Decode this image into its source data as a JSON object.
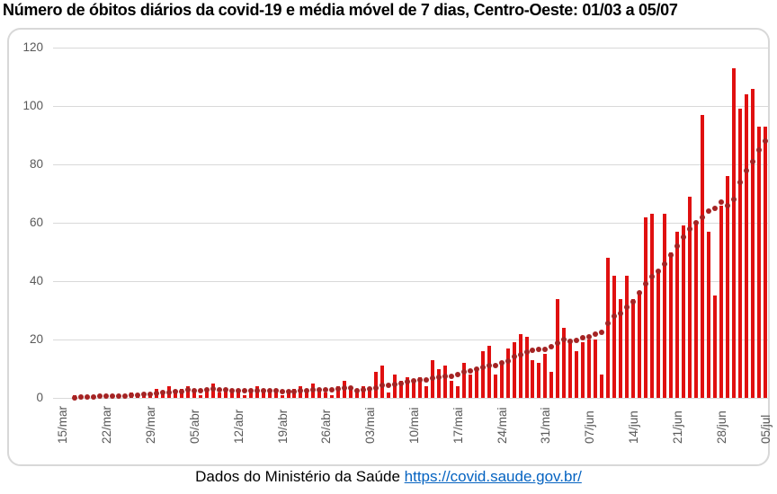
{
  "title": "Número de óbitos diários da covid-19 e média móvel de 7 dias, Centro-Oeste: 01/03 a 05/07",
  "footer": {
    "text": "Dados do Ministério da Saúde ",
    "link_label": "https://covid.saude.gov.br/"
  },
  "colors": {
    "bar": "#e01010",
    "moving_average_dot": "#a52323",
    "gridline": "#d9d9d9",
    "axis_text": "#595959",
    "link": "#0563c1",
    "frame_border": "#d8d8d8"
  },
  "chart_data": {
    "type": "bar",
    "title": "Número de óbitos diários da covid-19 e média móvel de 7 dias, Centro-Oeste: 01/03 a 05/07",
    "xlabel": "",
    "ylabel": "",
    "ylim": [
      0,
      120
    ],
    "y_ticks": [
      0,
      20,
      40,
      60,
      80,
      100,
      120
    ],
    "grid": "horizontal",
    "legend": "none",
    "x_tick_labels": [
      "15/mar",
      "22/mar",
      "29/mar",
      "05/abr",
      "12/abr",
      "19/abr",
      "26/abr",
      "03/mai",
      "10/mai",
      "17/mai",
      "24/mai",
      "31/mai",
      "07/jun",
      "14/jun",
      "21/jun",
      "28/jun",
      "05/jul"
    ],
    "series": [
      {
        "name": "Número de óbitos diários",
        "style": "bar",
        "color": "#e01010"
      },
      {
        "name": "Média móvel de 7 dias",
        "style": "dots",
        "color": "#a52323"
      }
    ],
    "days": [
      {
        "d": "14/mar",
        "v": 0,
        "m": null
      },
      {
        "d": "15/mar",
        "v": 0,
        "m": null
      },
      {
        "d": "16/mar",
        "v": 0,
        "m": null
      },
      {
        "d": "17/mar",
        "v": 1,
        "m": 0.1
      },
      {
        "d": "18/mar",
        "v": 1,
        "m": 0.3
      },
      {
        "d": "19/mar",
        "v": 0,
        "m": 0.4
      },
      {
        "d": "20/mar",
        "v": 1,
        "m": 0.4
      },
      {
        "d": "21/mar",
        "v": 1,
        "m": 0.6
      },
      {
        "d": "22/mar",
        "v": 0,
        "m": 0.6
      },
      {
        "d": "23/mar",
        "v": 1,
        "m": 0.6
      },
      {
        "d": "24/mar",
        "v": 1,
        "m": 0.7
      },
      {
        "d": "25/mar",
        "v": 1,
        "m": 0.7
      },
      {
        "d": "26/mar",
        "v": 2,
        "m": 0.9
      },
      {
        "d": "27/mar",
        "v": 1,
        "m": 1.0
      },
      {
        "d": "28/mar",
        "v": 2,
        "m": 1.1
      },
      {
        "d": "29/mar",
        "v": 1,
        "m": 1.3
      },
      {
        "d": "30/mar",
        "v": 3,
        "m": 1.6
      },
      {
        "d": "31/mar",
        "v": 2,
        "m": 1.7
      },
      {
        "d": "01/abr",
        "v": 4,
        "m": 2.0
      },
      {
        "d": "02/abr",
        "v": 2,
        "m": 2.1
      },
      {
        "d": "03/abr",
        "v": 3,
        "m": 2.3
      },
      {
        "d": "04/abr",
        "v": 4,
        "m": 2.7
      },
      {
        "d": "05/abr",
        "v": 2,
        "m": 2.6
      },
      {
        "d": "06/abr",
        "v": 1,
        "m": 2.4
      },
      {
        "d": "07/abr",
        "v": 3,
        "m": 2.7
      },
      {
        "d": "08/abr",
        "v": 5,
        "m": 3.0
      },
      {
        "d": "09/abr",
        "v": 2,
        "m": 2.9
      },
      {
        "d": "10/abr",
        "v": 3,
        "m": 2.9
      },
      {
        "d": "11/abr",
        "v": 2,
        "m": 2.6
      },
      {
        "d": "12/abr",
        "v": 2,
        "m": 2.6
      },
      {
        "d": "13/abr",
        "v": 1,
        "m": 2.6
      },
      {
        "d": "14/abr",
        "v": 3,
        "m": 2.6
      },
      {
        "d": "15/abr",
        "v": 4,
        "m": 2.4
      },
      {
        "d": "16/abr",
        "v": 2,
        "m": 2.4
      },
      {
        "d": "17/abr",
        "v": 3,
        "m": 2.4
      },
      {
        "d": "18/abr",
        "v": 2,
        "m": 2.4
      },
      {
        "d": "19/abr",
        "v": 1,
        "m": 2.3
      },
      {
        "d": "20/abr",
        "v": 2,
        "m": 2.1
      },
      {
        "d": "21/abr",
        "v": 3,
        "m": 2.3
      },
      {
        "d": "22/abr",
        "v": 4,
        "m": 2.4
      },
      {
        "d": "23/abr",
        "v": 2,
        "m": 2.4
      },
      {
        "d": "24/abr",
        "v": 5,
        "m": 2.7
      },
      {
        "d": "25/abr",
        "v": 3,
        "m": 2.9
      },
      {
        "d": "26/abr",
        "v": 2,
        "m": 2.9
      },
      {
        "d": "27/abr",
        "v": 1,
        "m": 2.9
      },
      {
        "d": "28/abr",
        "v": 4,
        "m": 3.0
      },
      {
        "d": "29/abr",
        "v": 6,
        "m": 3.3
      },
      {
        "d": "30/abr",
        "v": 3,
        "m": 3.4
      },
      {
        "d": "01/mai",
        "v": 3,
        "m": 2.6
      },
      {
        "d": "02/mai",
        "v": 4,
        "m": 2.8
      },
      {
        "d": "03/mai",
        "v": 3,
        "m": 3.0
      },
      {
        "d": "04/mai",
        "v": 9,
        "m": 3.5
      },
      {
        "d": "05/mai",
        "v": 11,
        "m": 4.2
      },
      {
        "d": "06/mai",
        "v": 2,
        "m": 4.3
      },
      {
        "d": "07/mai",
        "v": 8,
        "m": 4.6
      },
      {
        "d": "08/mai",
        "v": 6,
        "m": 5.0
      },
      {
        "d": "09/mai",
        "v": 7,
        "m": 5.4
      },
      {
        "d": "10/mai",
        "v": 6,
        "m": 5.8
      },
      {
        "d": "11/mai",
        "v": 7,
        "m": 6.1
      },
      {
        "d": "12/mai",
        "v": 4,
        "m": 6.1
      },
      {
        "d": "13/mai",
        "v": 13,
        "m": 6.9
      },
      {
        "d": "14/mai",
        "v": 10,
        "m": 7.1
      },
      {
        "d": "15/mai",
        "v": 11,
        "m": 7.3
      },
      {
        "d": "16/mai",
        "v": 6,
        "m": 7.4
      },
      {
        "d": "17/mai",
        "v": 4,
        "m": 8.0
      },
      {
        "d": "18/mai",
        "v": 12,
        "m": 9.0
      },
      {
        "d": "19/mai",
        "v": 8,
        "m": 9.3
      },
      {
        "d": "20/mai",
        "v": 10,
        "m": 10.0
      },
      {
        "d": "21/mai",
        "v": 16,
        "m": 10.5
      },
      {
        "d": "22/mai",
        "v": 18,
        "m": 11.1
      },
      {
        "d": "23/mai",
        "v": 8,
        "m": 11.1
      },
      {
        "d": "24/mai",
        "v": 12,
        "m": 12.0
      },
      {
        "d": "25/mai",
        "v": 17,
        "m": 12.6
      },
      {
        "d": "26/mai",
        "v": 19,
        "m": 14.2
      },
      {
        "d": "27/mai",
        "v": 22,
        "m": 14.8
      },
      {
        "d": "28/mai",
        "v": 21,
        "m": 15.7
      },
      {
        "d": "29/mai",
        "v": 13,
        "m": 16.2
      },
      {
        "d": "30/mai",
        "v": 12,
        "m": 16.6
      },
      {
        "d": "31/mai",
        "v": 15,
        "m": 16.6
      },
      {
        "d": "01/jun",
        "v": 9,
        "m": 17.5
      },
      {
        "d": "02/jun",
        "v": 34,
        "m": 18.8
      },
      {
        "d": "03/jun",
        "v": 24,
        "m": 20.0
      },
      {
        "d": "04/jun",
        "v": 19,
        "m": 19.4
      },
      {
        "d": "05/jun",
        "v": 16,
        "m": 19.7
      },
      {
        "d": "06/jun",
        "v": 19,
        "m": 20.6
      },
      {
        "d": "07/jun",
        "v": 20,
        "m": 21.0
      },
      {
        "d": "08/jun",
        "v": 20,
        "m": 21.8
      },
      {
        "d": "09/jun",
        "v": 8,
        "m": 22.5
      },
      {
        "d": "10/jun",
        "v": 48,
        "m": 25.5
      },
      {
        "d": "11/jun",
        "v": 42,
        "m": 28.0
      },
      {
        "d": "12/jun",
        "v": 34,
        "m": 29.0
      },
      {
        "d": "13/jun",
        "v": 42,
        "m": 31.0
      },
      {
        "d": "14/jun",
        "v": 34,
        "m": 33.0
      },
      {
        "d": "15/jun",
        "v": 36,
        "m": 36.0
      },
      {
        "d": "16/jun",
        "v": 62,
        "m": 39.0
      },
      {
        "d": "17/jun",
        "v": 63,
        "m": 41.5
      },
      {
        "d": "18/jun",
        "v": 44,
        "m": 43.5
      },
      {
        "d": "19/jun",
        "v": 63,
        "m": 46.0
      },
      {
        "d": "20/jun",
        "v": 50,
        "m": 49.0
      },
      {
        "d": "21/jun",
        "v": 57,
        "m": 52.0
      },
      {
        "d": "22/jun",
        "v": 59,
        "m": 55.0
      },
      {
        "d": "23/jun",
        "v": 69,
        "m": 58.0
      },
      {
        "d": "24/jun",
        "v": 60,
        "m": 60.0
      },
      {
        "d": "25/jun",
        "v": 97,
        "m": 62.0
      },
      {
        "d": "26/jun",
        "v": 57,
        "m": 64.0
      },
      {
        "d": "27/jun",
        "v": 35,
        "m": 65.0
      },
      {
        "d": "28/jun",
        "v": 66,
        "m": 67.0
      },
      {
        "d": "29/jun",
        "v": 76,
        "m": 66.0
      },
      {
        "d": "30/jun",
        "v": 113,
        "m": 68.0
      },
      {
        "d": "01/jul",
        "v": 99,
        "m": 74.0
      },
      {
        "d": "02/jul",
        "v": 104,
        "m": 78.0
      },
      {
        "d": "03/jul",
        "v": 106,
        "m": 81.0
      },
      {
        "d": "04/jul",
        "v": 93,
        "m": 85.0
      },
      {
        "d": "05/jul",
        "v": 93,
        "m": 88.0
      }
    ]
  }
}
